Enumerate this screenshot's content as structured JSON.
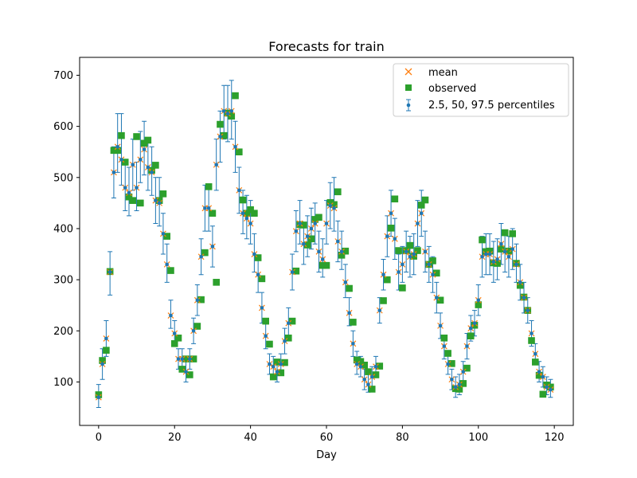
{
  "chart_data": {
    "type": "scatter",
    "title": "Forecasts for train",
    "xlabel": "Day",
    "ylabel": "",
    "xlim": [
      -5,
      125
    ],
    "ylim": [
      15,
      735
    ],
    "xticks": [
      0,
      20,
      40,
      60,
      80,
      100,
      120
    ],
    "yticks": [
      100,
      200,
      300,
      400,
      500,
      600,
      700
    ],
    "grid": false,
    "legend_position": "top-right",
    "legend": [
      {
        "label": "mean",
        "marker": "x",
        "color": "#ff7f0e"
      },
      {
        "label": "observed",
        "marker": "square",
        "color": "#2ca02c"
      },
      {
        "label": "2.5, 50, 97.5 percentiles",
        "marker": "errorbar",
        "color": "#1f77b4"
      }
    ],
    "colors": {
      "mean": "#ff7f0e",
      "observed": "#2ca02c",
      "percentiles": "#1f77b4"
    },
    "x": [
      0,
      1,
      2,
      3,
      4,
      5,
      6,
      7,
      8,
      9,
      10,
      11,
      12,
      13,
      14,
      15,
      16,
      17,
      18,
      19,
      20,
      21,
      22,
      23,
      24,
      25,
      26,
      27,
      28,
      29,
      30,
      31,
      32,
      33,
      34,
      35,
      36,
      37,
      38,
      39,
      40,
      41,
      42,
      43,
      44,
      45,
      46,
      47,
      48,
      49,
      50,
      51,
      52,
      53,
      54,
      55,
      56,
      57,
      58,
      59,
      60,
      61,
      62,
      63,
      64,
      65,
      66,
      67,
      68,
      69,
      70,
      71,
      72,
      73,
      74,
      75,
      76,
      77,
      78,
      79,
      80,
      81,
      82,
      83,
      84,
      85,
      86,
      87,
      88,
      89,
      90,
      91,
      92,
      93,
      94,
      95,
      96,
      97,
      98,
      99,
      100,
      101,
      102,
      103,
      104,
      105,
      106,
      107,
      108,
      109,
      110,
      111,
      112,
      113,
      114,
      115,
      116,
      117,
      118,
      119
    ],
    "series": [
      {
        "name": "mean",
        "values": [
          70,
          135,
          185,
          315,
          510,
          560,
          535,
          480,
          470,
          525,
          480,
          535,
          555,
          520,
          510,
          455,
          450,
          390,
          330,
          230,
          195,
          145,
          145,
          120,
          145,
          200,
          260,
          345,
          440,
          440,
          365,
          525,
          580,
          630,
          625,
          630,
          560,
          475,
          430,
          420,
          410,
          350,
          310,
          245,
          190,
          135,
          130,
          120,
          135,
          180,
          215,
          315,
          395,
          410,
          370,
          385,
          400,
          410,
          355,
          340,
          410,
          445,
          440,
          375,
          355,
          295,
          235,
          175,
          135,
          130,
          105,
          95,
          110,
          130,
          240,
          310,
          385,
          430,
          380,
          315,
          330,
          355,
          345,
          350,
          410,
          430,
          355,
          330,
          310,
          265,
          210,
          170,
          135,
          105,
          90,
          95,
          120,
          170,
          205,
          215,
          260,
          345,
          350,
          350,
          335,
          340,
          370,
          355,
          345,
          360,
          330,
          295,
          265,
          240,
          195,
          155,
          120,
          110,
          90,
          85
        ]
      },
      {
        "name": "observed",
        "values": [
          75,
          142,
          162,
          316,
          553,
          553,
          582,
          530,
          462,
          455,
          580,
          450,
          567,
          573,
          514,
          524,
          455,
          468,
          385,
          318,
          175,
          186,
          125,
          145,
          114,
          145,
          209,
          261,
          353,
          482,
          430,
          295,
          604,
          582,
          626,
          620,
          660,
          550,
          456,
          430,
          437,
          430,
          343,
          302,
          219,
          174,
          110,
          139,
          118,
          138,
          186,
          219,
          317,
          408,
          407,
          368,
          380,
          418,
          422,
          328,
          328,
          451,
          447,
          472,
          348,
          356,
          283,
          217,
          143,
          140,
          133,
          120,
          86,
          114,
          131,
          259,
          300,
          401,
          458,
          357,
          284,
          357,
          367,
          346,
          357,
          446,
          456,
          330,
          337,
          313,
          260,
          186,
          156,
          136,
          87,
          86,
          97,
          127,
          190,
          211,
          251,
          378,
          355,
          356,
          333,
          332,
          360,
          392,
          356,
          390,
          332,
          289,
          266,
          240,
          181,
          139,
          113,
          76,
          94,
          90
        ]
      },
      {
        "name": "median",
        "values": [
          70,
          135,
          185,
          315,
          510,
          560,
          535,
          480,
          470,
          525,
          480,
          535,
          555,
          520,
          510,
          455,
          450,
          390,
          330,
          230,
          195,
          145,
          145,
          120,
          145,
          200,
          260,
          345,
          440,
          440,
          365,
          525,
          580,
          630,
          625,
          630,
          560,
          475,
          430,
          420,
          410,
          350,
          310,
          245,
          190,
          135,
          130,
          120,
          135,
          180,
          215,
          315,
          395,
          410,
          370,
          385,
          400,
          410,
          355,
          340,
          410,
          445,
          440,
          375,
          355,
          295,
          235,
          175,
          135,
          130,
          105,
          95,
          110,
          130,
          240,
          310,
          385,
          430,
          380,
          315,
          330,
          355,
          345,
          350,
          410,
          430,
          355,
          330,
          310,
          265,
          210,
          170,
          135,
          105,
          90,
          95,
          120,
          170,
          205,
          215,
          260,
          345,
          350,
          350,
          335,
          340,
          370,
          355,
          345,
          360,
          330,
          295,
          265,
          240,
          195,
          155,
          120,
          110,
          90,
          85
        ]
      },
      {
        "name": "p2.5",
        "values": [
          50,
          105,
          150,
          270,
          460,
          510,
          485,
          435,
          425,
          475,
          435,
          490,
          505,
          475,
          465,
          410,
          405,
          350,
          295,
          205,
          170,
          125,
          125,
          100,
          125,
          175,
          230,
          310,
          395,
          395,
          325,
          475,
          530,
          575,
          570,
          575,
          510,
          430,
          390,
          380,
          370,
          315,
          275,
          215,
          165,
          115,
          110,
          100,
          115,
          155,
          190,
          280,
          355,
          370,
          330,
          345,
          360,
          370,
          315,
          305,
          370,
          400,
          395,
          335,
          320,
          265,
          210,
          150,
          115,
          110,
          85,
          80,
          90,
          110,
          215,
          280,
          345,
          385,
          340,
          280,
          295,
          315,
          305,
          310,
          365,
          385,
          315,
          295,
          275,
          235,
          185,
          145,
          115,
          85,
          70,
          75,
          100,
          145,
          180,
          190,
          230,
          305,
          310,
          310,
          295,
          300,
          330,
          315,
          305,
          320,
          295,
          260,
          235,
          215,
          170,
          135,
          100,
          90,
          75,
          70
        ]
      },
      {
        "name": "p97.5",
        "values": [
          95,
          165,
          220,
          355,
          560,
          625,
          625,
          535,
          520,
          575,
          530,
          590,
          610,
          570,
          560,
          500,
          500,
          430,
          370,
          260,
          220,
          165,
          165,
          140,
          165,
          225,
          290,
          380,
          485,
          485,
          405,
          575,
          630,
          680,
          680,
          690,
          610,
          520,
          475,
          465,
          455,
          390,
          345,
          275,
          215,
          155,
          150,
          140,
          155,
          205,
          245,
          350,
          435,
          455,
          410,
          425,
          440,
          450,
          395,
          380,
          455,
          490,
          500,
          415,
          395,
          330,
          265,
          200,
          160,
          150,
          125,
          115,
          130,
          150,
          265,
          340,
          425,
          475,
          420,
          350,
          365,
          395,
          385,
          390,
          455,
          475,
          395,
          365,
          345,
          295,
          235,
          190,
          155,
          125,
          110,
          115,
          140,
          195,
          230,
          240,
          290,
          385,
          390,
          390,
          375,
          380,
          410,
          395,
          385,
          400,
          370,
          330,
          295,
          265,
          220,
          175,
          140,
          130,
          110,
          105
        ]
      }
    ]
  }
}
